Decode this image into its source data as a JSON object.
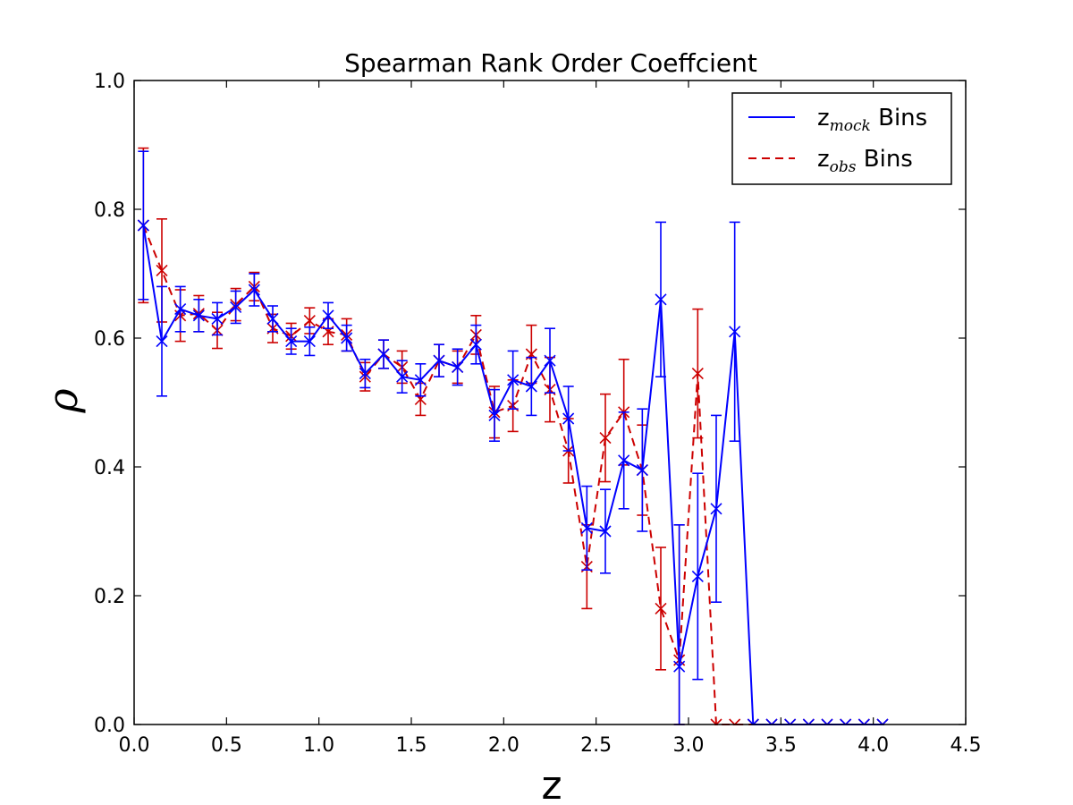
{
  "chart_data": {
    "type": "line",
    "title": "Spearman Rank Order Coeffcient",
    "xlabel": "z",
    "ylabel": "ρ",
    "xlim": [
      0.0,
      4.5
    ],
    "ylim": [
      0.0,
      1.0
    ],
    "x_ticks": [
      "0.0",
      "0.5",
      "1.0",
      "1.5",
      "2.0",
      "2.5",
      "3.0",
      "3.5",
      "4.0",
      "4.5"
    ],
    "y_ticks": [
      "0.0",
      "0.2",
      "0.4",
      "0.6",
      "0.8",
      "1.0"
    ],
    "legend_position": "top-right",
    "grid": false,
    "series": [
      {
        "name": "z_mock Bins",
        "legend_base": "z",
        "legend_sub": "mock",
        "legend_suffix": " Bins",
        "color": "#0000ff",
        "linestyle": "solid",
        "marker": "x",
        "x": [
          0.05,
          0.15,
          0.25,
          0.35,
          0.45,
          0.55,
          0.65,
          0.75,
          0.85,
          0.95,
          1.05,
          1.15,
          1.25,
          1.35,
          1.45,
          1.55,
          1.65,
          1.75,
          1.85,
          1.95,
          2.05,
          2.15,
          2.25,
          2.35,
          2.45,
          2.55,
          2.65,
          2.75,
          2.85,
          2.95,
          3.05,
          3.15,
          3.25,
          3.35,
          3.45,
          3.55,
          3.65,
          3.75,
          3.85,
          3.95,
          4.05
        ],
        "y": [
          0.775,
          0.595,
          0.645,
          0.635,
          0.63,
          0.648,
          0.675,
          0.63,
          0.595,
          0.595,
          0.635,
          0.6,
          0.545,
          0.575,
          0.54,
          0.535,
          0.565,
          0.555,
          0.59,
          0.48,
          0.535,
          0.525,
          0.565,
          0.475,
          0.305,
          0.3,
          0.41,
          0.395,
          0.66,
          0.09,
          0.23,
          0.335,
          0.61,
          0.0,
          0.0,
          0.0,
          0.0,
          0.0,
          0.0,
          0.0,
          0.0
        ],
        "yerr": [
          0.115,
          0.085,
          0.035,
          0.025,
          0.025,
          0.025,
          0.025,
          0.02,
          0.02,
          0.022,
          0.02,
          0.02,
          0.022,
          0.022,
          0.025,
          0.025,
          0.025,
          0.028,
          0.03,
          0.04,
          0.045,
          0.045,
          0.05,
          0.05,
          0.065,
          0.065,
          0.075,
          0.095,
          0.12,
          0.22,
          0.16,
          0.145,
          0.17,
          0,
          0,
          0,
          0,
          0,
          0,
          0,
          0
        ]
      },
      {
        "name": "z_obs Bins",
        "legend_base": "z",
        "legend_sub": "obs",
        "legend_suffix": " Bins",
        "color": "#cc0000",
        "linestyle": "dashed",
        "marker": "x",
        "x": [
          0.05,
          0.15,
          0.25,
          0.35,
          0.45,
          0.55,
          0.65,
          0.75,
          0.85,
          0.95,
          1.05,
          1.15,
          1.25,
          1.35,
          1.45,
          1.55,
          1.65,
          1.75,
          1.85,
          1.95,
          2.05,
          2.15,
          2.25,
          2.35,
          2.45,
          2.55,
          2.65,
          2.75,
          2.85,
          2.95,
          3.05,
          3.15,
          3.25,
          3.35,
          3.45,
          3.55,
          3.65,
          3.75,
          3.85,
          3.95,
          4.05
        ],
        "y": [
          0.775,
          0.705,
          0.635,
          0.638,
          0.612,
          0.652,
          0.68,
          0.615,
          0.603,
          0.627,
          0.61,
          0.605,
          0.54,
          0.575,
          0.555,
          0.505,
          0.565,
          0.555,
          0.605,
          0.485,
          0.495,
          0.575,
          0.52,
          0.425,
          0.245,
          0.445,
          0.485,
          0.395,
          0.18,
          0.1,
          0.545,
          0.0,
          0.0,
          0.0,
          0.0,
          0.0,
          0.0,
          0.0,
          0.0,
          0.0,
          0.0
        ],
        "yerr": [
          0.12,
          0.08,
          0.04,
          0.028,
          0.028,
          0.025,
          0.022,
          0.022,
          0.02,
          0.02,
          0.02,
          0.025,
          0.022,
          0.022,
          0.025,
          0.025,
          0.025,
          0.025,
          0.03,
          0.04,
          0.04,
          0.045,
          0.05,
          0.05,
          0.065,
          0.068,
          0.082,
          0.07,
          0.095,
          0.21,
          0.1,
          0,
          0,
          0,
          0,
          0,
          0,
          0,
          0,
          0,
          0
        ]
      }
    ]
  }
}
